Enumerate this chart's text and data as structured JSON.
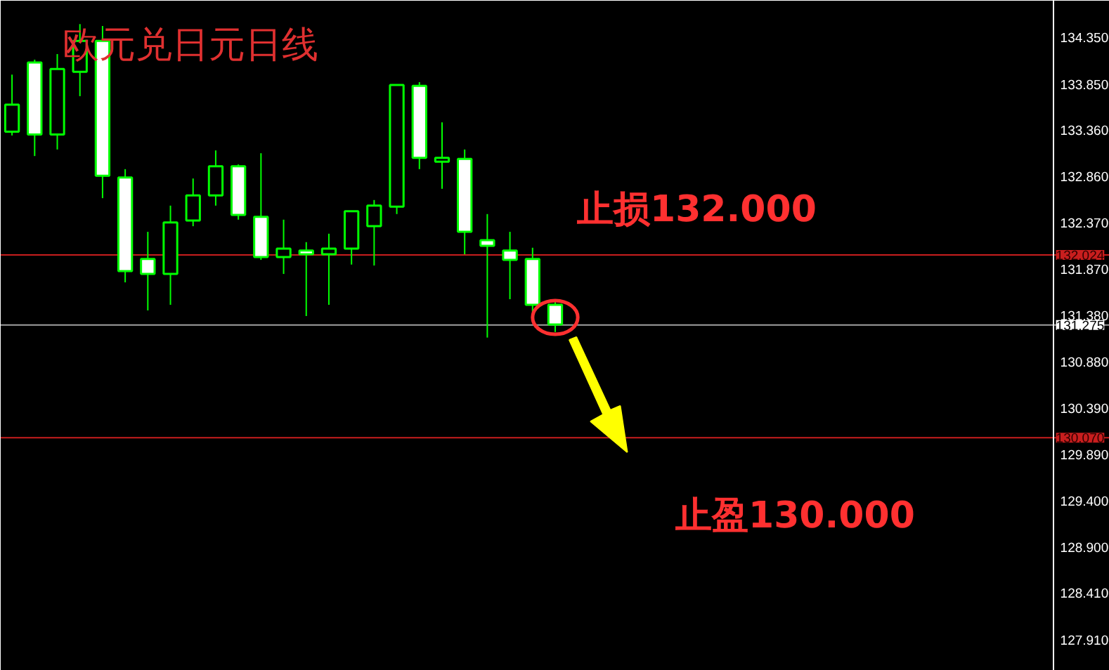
{
  "chart_data": {
    "type": "candlestick",
    "title": "欧元兑日元日线",
    "categories": [
      null,
      null,
      null,
      null,
      null,
      null,
      null,
      null,
      null,
      null,
      null,
      null,
      null,
      null,
      null,
      null,
      null,
      null,
      null,
      null,
      null,
      null,
      null,
      null,
      null,
      null,
      null,
      null,
      null,
      null,
      null,
      null,
      null,
      null,
      null,
      null,
      null,
      null,
      null,
      null,
      null,
      null,
      null,
      null,
      null,
      null,
      null,
      null,
      null
    ],
    "ohlc": [
      [
        133.34,
        133.95,
        133.3,
        133.63
      ],
      [
        134.08,
        134.11,
        133.08,
        133.31
      ],
      [
        133.31,
        134.17,
        133.15,
        134.01
      ],
      [
        133.98,
        134.49,
        133.72,
        134.31
      ],
      [
        134.31,
        134.47,
        132.63,
        132.87
      ],
      [
        132.85,
        132.94,
        131.73,
        131.85
      ],
      [
        131.98,
        132.27,
        131.43,
        131.82
      ],
      [
        131.82,
        132.55,
        131.49,
        132.37
      ],
      [
        132.39,
        132.84,
        132.33,
        132.66
      ],
      [
        132.66,
        133.14,
        132.55,
        132.97
      ],
      [
        132.97,
        132.99,
        132.4,
        132.45
      ],
      [
        132.43,
        133.11,
        131.97,
        132.0
      ],
      [
        132.0,
        132.4,
        131.82,
        132.09
      ],
      [
        132.07,
        132.16,
        131.37,
        132.03
      ],
      [
        132.03,
        132.25,
        131.49,
        132.09
      ],
      [
        132.09,
        132.49,
        131.92,
        132.49
      ],
      [
        132.33,
        132.61,
        131.91,
        132.55
      ],
      [
        132.54,
        133.84,
        132.46,
        133.84
      ],
      [
        133.83,
        133.87,
        132.94,
        133.06
      ],
      [
        133.02,
        133.44,
        132.73,
        133.06
      ],
      [
        133.05,
        133.15,
        132.03,
        132.27
      ],
      [
        132.18,
        132.46,
        131.14,
        132.12
      ],
      [
        132.07,
        132.27,
        131.55,
        131.97
      ],
      [
        131.98,
        132.1,
        131.41,
        131.49
      ],
      [
        131.49,
        131.53,
        131.2,
        131.28
      ],
      null,
      null,
      null,
      null,
      null,
      null,
      null,
      null,
      null,
      null,
      null,
      null,
      null,
      null,
      null,
      null,
      null,
      null,
      null,
      null,
      null,
      null,
      null,
      null
    ],
    "color": "#00ff00",
    "ylim": [
      127.58,
      134.74
    ],
    "yticks": [
      {
        "value": 134.35,
        "label": "134.350"
      },
      {
        "value": 133.85,
        "label": "133.850"
      },
      {
        "value": 133.36,
        "label": "133.360"
      },
      {
        "value": 132.86,
        "label": "132.860"
      },
      {
        "value": 132.37,
        "label": "132.370"
      },
      {
        "value": 131.87,
        "label": "131.870"
      },
      {
        "value": 131.38,
        "label": "131.380"
      },
      {
        "value": 130.88,
        "label": "130.880"
      },
      {
        "value": 130.39,
        "label": "130.390"
      },
      {
        "value": 129.89,
        "label": "129.890"
      },
      {
        "value": 129.4,
        "label": "129.400"
      },
      {
        "value": 128.9,
        "label": "128.900"
      },
      {
        "value": 128.41,
        "label": "128.410"
      },
      {
        "value": 127.91,
        "label": "127.910"
      }
    ],
    "tick_labels": "y",
    "ref_lines": [
      {
        "axis": "y",
        "value": 132.024,
        "label": "132.024",
        "color": "#c81e1e"
      },
      {
        "axis": "y",
        "value": 131.275,
        "label": "131.275",
        "color": "#a0a0a0"
      },
      {
        "axis": "y",
        "value": 130.07,
        "label": "130.070",
        "color": "#c81e1e"
      }
    ],
    "annotations": [
      "止损132.000",
      "止盈130.000"
    ]
  }
}
